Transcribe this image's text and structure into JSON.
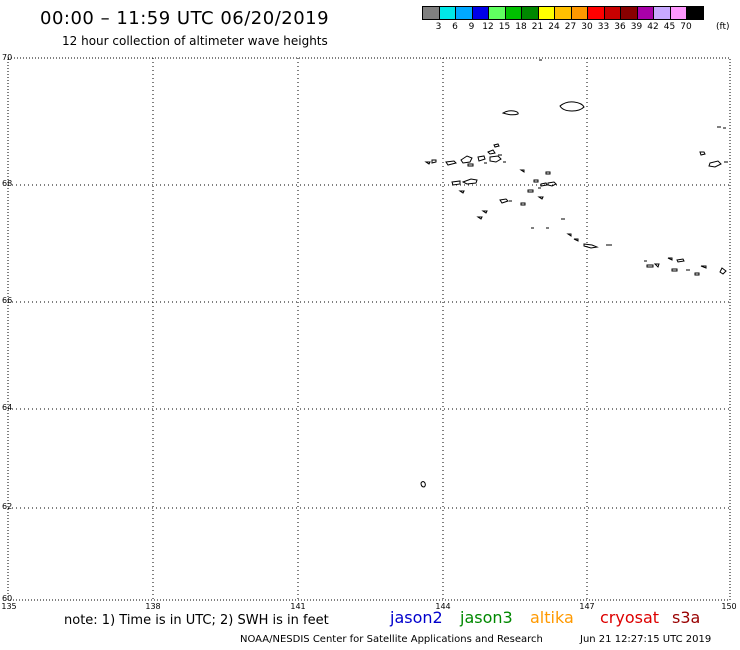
{
  "header": {
    "title": "00:00 – 11:59 UTC 06/20/2019",
    "subtitle": "12 hour collection of altimeter wave heights"
  },
  "legend": {
    "colors": [
      "#808080",
      "#00e8e8",
      "#00a8ff",
      "#0000e8",
      "#60ff60",
      "#00c000",
      "#008800",
      "#ffff00",
      "#ffc000",
      "#ff9800",
      "#ff0000",
      "#c80000",
      "#880000",
      "#a800a8",
      "#c8a8ff",
      "#ff98ff",
      "#000000"
    ],
    "labels": [
      "3",
      "6",
      "9",
      "12",
      "15",
      "18",
      "21",
      "24",
      "27",
      "30",
      "33",
      "36",
      "39",
      "42",
      "45",
      "70"
    ],
    "unit": "(ft)"
  },
  "map": {
    "lat_labels": [
      "70",
      "68",
      "66",
      "64",
      "62",
      "60"
    ],
    "lon_labels": [
      "135",
      "138",
      "141",
      "144",
      "147",
      "150"
    ]
  },
  "footer": {
    "note": "note: 1) Time is in UTC; 2) SWH is in feet",
    "missions": [
      {
        "name": "jason2",
        "color": "#0000cc"
      },
      {
        "name": "jason3",
        "color": "#008800"
      },
      {
        "name": "altika",
        "color": "#ff9900"
      },
      {
        "name": "cryosat",
        "color": "#dd0000"
      },
      {
        "name": "s3a",
        "color": "#990000"
      }
    ],
    "credit": "NOAA/NESDIS Center for Satellite Applications and Research",
    "generated": "Jun 21 12:27:15 UTC 2019"
  }
}
